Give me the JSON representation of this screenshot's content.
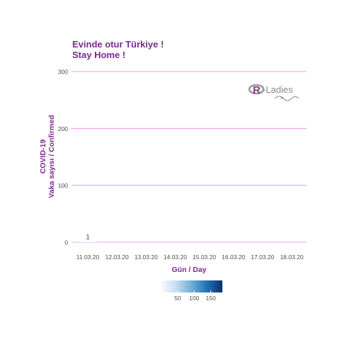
{
  "chart_data": {
    "type": "bar",
    "title": "Evinde otur Türkiye !",
    "subtitle": "Stay Home !",
    "xlabel": "Gün / Day",
    "ylabel_line1": "COVID-19",
    "ylabel_line2": "Vaka sayısı / Confirmed",
    "categories": [
      "11.03.20",
      "12.03.20",
      "13.03.20",
      "14.03.20",
      "15.03.20",
      "16.03.20",
      "17.03.20",
      "18.03.20"
    ],
    "values": [
      1,
      null,
      null,
      null,
      null,
      null,
      null,
      null
    ],
    "data_labels": [
      "1",
      "",
      "",
      "",
      "",
      "",
      "",
      ""
    ],
    "ylim": [
      0,
      300
    ],
    "yticks": [
      0,
      100,
      200,
      300
    ],
    "ytick_labels": [
      "0",
      "100",
      "200",
      "300"
    ],
    "grid": "horizontal",
    "legend": {
      "type": "colorbar",
      "placement": "bottom",
      "range": [
        1,
        185
      ],
      "ticks": [
        50,
        100,
        150
      ],
      "tick_labels": [
        "50",
        "100",
        "150"
      ],
      "colors": [
        "#f7fbff",
        "#c6dbef",
        "#6baed6",
        "#2171b5",
        "#08306b"
      ]
    },
    "logo_text": "R-Ladies",
    "colors": {
      "accent": "#7b2a8c",
      "grid": "#ee82ee",
      "axis_text": "#4d4d4d",
      "logo": "#88398a"
    }
  }
}
